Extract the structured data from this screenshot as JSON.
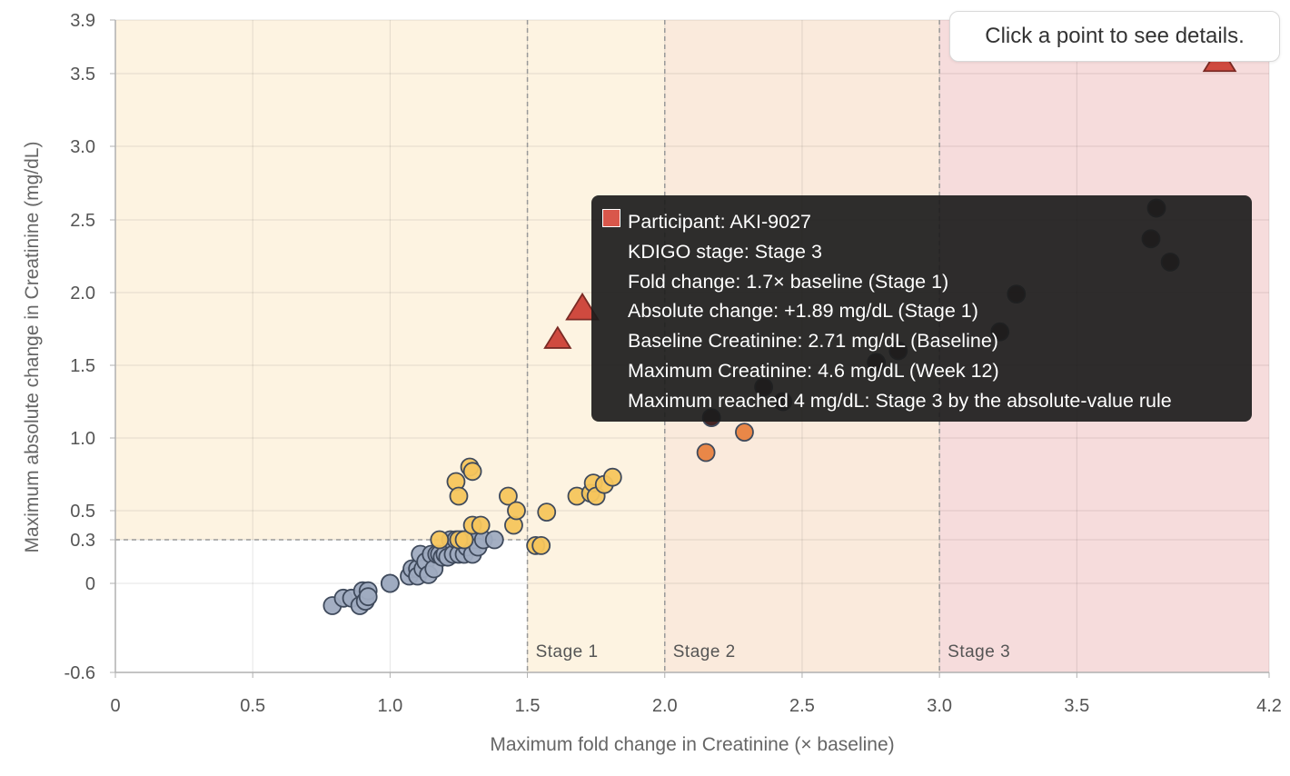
{
  "ui": {
    "hint": "Click a point to see details.",
    "tooltip": {
      "swatch_color": "#d9574b",
      "lines": [
        "Participant: AKI-9027",
        "KDIGO stage: Stage 3",
        "Fold change: 1.7× baseline (Stage 1)",
        "Absolute change: +1.89 mg/dL (Stage 1)",
        "Baseline Creatinine: 2.71 mg/dL (Baseline)",
        "Maximum Creatinine: 4.6 mg/dL (Week 12)",
        "Maximum reached 4 mg/dL: Stage 3 by the absolute-value rule"
      ]
    }
  },
  "chart_data": {
    "type": "scatter",
    "xlabel": "Maximum fold change in Creatinine (× baseline)",
    "ylabel": "Maximum absolute change in Creatinine (mg/dL)",
    "xlim": [
      0,
      4.2
    ],
    "ylim": [
      -0.6,
      3.9
    ],
    "x_ticks": [
      0,
      0.5,
      1.0,
      1.5,
      2.0,
      2.5,
      3.0,
      3.5,
      4.2
    ],
    "x_tick_labels": [
      "0",
      "0.5",
      "1.0",
      "1.5",
      "2.0",
      "2.5",
      "3.0",
      "3.5",
      "4.2"
    ],
    "y_ticks": [
      -0.6,
      0,
      0.3,
      0.5,
      1.0,
      1.5,
      2.0,
      2.5,
      3.0,
      3.5,
      3.9
    ],
    "y_tick_labels": [
      "-0.6",
      "0",
      "0.3",
      "0.5",
      "1.0",
      "1.5",
      "2.0",
      "2.5",
      "3.0",
      "3.5",
      "3.9"
    ],
    "grid": true,
    "stage_bands": [
      {
        "label": "Stage 1",
        "x_from": 1.5,
        "x_to": 2.0,
        "color": "#fdf3e1"
      },
      {
        "label": "Stage 2",
        "x_from": 2.0,
        "x_to": 3.0,
        "color": "#faeadc"
      },
      {
        "label": "Stage 3",
        "x_from": 3.0,
        "x_to": 4.2,
        "color": "#f6dcdc"
      }
    ],
    "absolute_rule_band": {
      "y_from": 0.3,
      "color": "#fdf3e1"
    },
    "series": [
      {
        "color": "#9fabc0",
        "points": [
          [
            0.79,
            -0.15
          ],
          [
            0.83,
            -0.1
          ],
          [
            0.86,
            -0.1
          ],
          [
            0.89,
            -0.15
          ],
          [
            0.9,
            -0.05
          ],
          [
            0.91,
            -0.12
          ],
          [
            0.92,
            -0.05
          ],
          [
            0.92,
            -0.09
          ],
          [
            1.0,
            0.0
          ],
          [
            1.0,
            0.0
          ],
          [
            1.07,
            0.05
          ],
          [
            1.08,
            0.1
          ],
          [
            1.1,
            0.1
          ],
          [
            1.1,
            0.05
          ],
          [
            1.11,
            0.2
          ],
          [
            1.12,
            0.1
          ],
          [
            1.13,
            0.15
          ],
          [
            1.14,
            0.06
          ],
          [
            1.15,
            0.2
          ],
          [
            1.16,
            0.1
          ],
          [
            1.17,
            0.2
          ],
          [
            1.18,
            0.2
          ],
          [
            1.19,
            0.18
          ],
          [
            1.2,
            0.2
          ],
          [
            1.21,
            0.18
          ],
          [
            1.22,
            0.3
          ],
          [
            1.23,
            0.2
          ],
          [
            1.24,
            0.3
          ],
          [
            1.25,
            0.2
          ],
          [
            1.26,
            0.3
          ],
          [
            1.27,
            0.2
          ],
          [
            1.28,
            0.25
          ],
          [
            1.29,
            0.3
          ],
          [
            1.3,
            0.2
          ],
          [
            1.31,
            0.3
          ],
          [
            1.32,
            0.25
          ],
          [
            1.34,
            0.3
          ],
          [
            1.38,
            0.3
          ]
        ]
      },
      {
        "color": "#f5c55c",
        "points": [
          [
            1.18,
            0.3
          ],
          [
            1.24,
            0.7
          ],
          [
            1.25,
            0.6
          ],
          [
            1.25,
            0.3
          ],
          [
            1.27,
            0.3
          ],
          [
            1.29,
            0.8
          ],
          [
            1.3,
            0.77
          ],
          [
            1.3,
            0.4
          ],
          [
            1.33,
            0.4
          ],
          [
            1.43,
            0.6
          ],
          [
            1.45,
            0.4
          ],
          [
            1.46,
            0.5
          ],
          [
            1.53,
            0.26
          ],
          [
            1.55,
            0.26
          ],
          [
            1.57,
            0.49
          ],
          [
            1.68,
            0.6
          ],
          [
            1.73,
            0.62
          ],
          [
            1.74,
            0.69
          ],
          [
            1.75,
            0.6
          ],
          [
            1.78,
            0.68
          ],
          [
            1.81,
            0.73
          ]
        ]
      },
      {
        "color": "#e8823f",
        "points": [
          [
            2.15,
            0.9
          ],
          [
            2.29,
            1.04
          ]
        ]
      },
      {
        "color": "#3a1a1a",
        "points": [
          [
            2.17,
            1.14
          ],
          [
            2.36,
            1.35
          ],
          [
            2.43,
            1.25
          ],
          [
            2.77,
            1.52
          ],
          [
            2.85,
            1.6
          ],
          [
            3.22,
            1.73
          ],
          [
            3.28,
            1.99
          ],
          [
            3.79,
            2.58
          ],
          [
            3.77,
            2.37
          ],
          [
            3.84,
            2.21
          ]
        ]
      },
      {
        "color": "#cf4a3f",
        "marker": "triangle",
        "points": [
          [
            1.61,
            1.68
          ],
          [
            1.7,
            1.89
          ],
          [
            4.02,
            3.6
          ]
        ]
      }
    ]
  }
}
